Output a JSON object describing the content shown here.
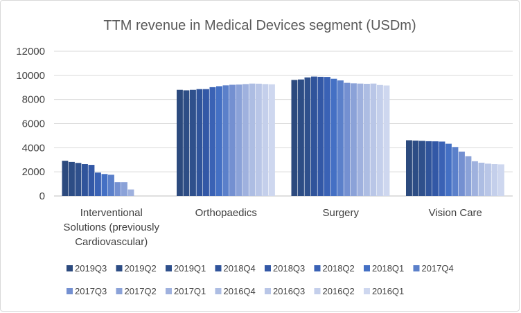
{
  "chart_data": {
    "type": "bar",
    "title": "TTM revenue in Medical Devices segment (USDm)",
    "xlabel": "",
    "ylabel": "",
    "ylim": [
      0,
      12000
    ],
    "yticks": [
      "0",
      "2000",
      "4000",
      "6000",
      "8000",
      "10000",
      "12000"
    ],
    "grid": true,
    "legend_position": "bottom",
    "categories": [
      [
        "Interventional",
        "Solutions (previously",
        "Cardiovascular)"
      ],
      [
        "Orthopaedics"
      ],
      [
        "Surgery"
      ],
      [
        "Vision Care"
      ]
    ],
    "series": [
      {
        "name": "2019Q3",
        "color": "#2c4a7e",
        "values": [
          2920,
          8800,
          9620,
          4620
        ]
      },
      {
        "name": "2019Q2",
        "color": "#2d4d85",
        "values": [
          2820,
          8760,
          9660,
          4590
        ]
      },
      {
        "name": "2019Q1",
        "color": "#2f508c",
        "values": [
          2740,
          8800,
          9830,
          4570
        ]
      },
      {
        "name": "2018Q4",
        "color": "#30549b",
        "values": [
          2640,
          8860,
          9900,
          4540
        ]
      },
      {
        "name": "2018Q3",
        "color": "#3358a6",
        "values": [
          2580,
          8860,
          9880,
          4530
        ]
      },
      {
        "name": "2018Q2",
        "color": "#3a62b5",
        "values": [
          1940,
          9020,
          9870,
          4510
        ]
      },
      {
        "name": "2018Q1",
        "color": "#4470c4",
        "values": [
          1820,
          9100,
          9720,
          4330
        ]
      },
      {
        "name": "2017Q4",
        "color": "#5b80ca",
        "values": [
          1760,
          9170,
          9580,
          4060
        ]
      },
      {
        "name": "2017Q3",
        "color": "#7490d1",
        "values": [
          1140,
          9220,
          9380,
          3680
        ]
      },
      {
        "name": "2017Q2",
        "color": "#8ba2d8",
        "values": [
          1140,
          9240,
          9340,
          3300
        ]
      },
      {
        "name": "2017Q1",
        "color": "#9fb1de",
        "values": [
          540,
          9280,
          9320,
          2880
        ]
      },
      {
        "name": "2016Q4",
        "color": "#adbde3",
        "values": [
          0,
          9320,
          9300,
          2760
        ]
      },
      {
        "name": "2016Q3",
        "color": "#b9c6e7",
        "values": [
          0,
          9310,
          9320,
          2680
        ]
      },
      {
        "name": "2016Q2",
        "color": "#c4cfeb",
        "values": [
          0,
          9280,
          9200,
          2640
        ]
      },
      {
        "name": "2016Q1",
        "color": "#ced7ef",
        "values": [
          0,
          9260,
          9160,
          2620
        ]
      }
    ]
  }
}
